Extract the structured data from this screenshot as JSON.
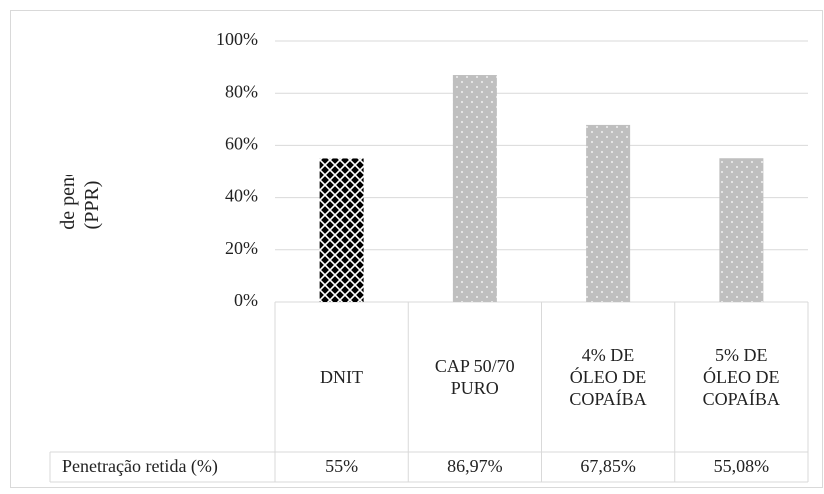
{
  "chart_data": {
    "type": "bar",
    "y_label": "Percentagem de penetração retira (PPR)",
    "categories": [
      "DNIT",
      "CAP 50/70 PURO",
      "4% DE ÓLEO DE COPAÍBA",
      "5% DE ÓLEO DE COPAÍBA"
    ],
    "series": [
      {
        "name": "Penetração retida (%)",
        "colors": [
          "#000000",
          "#bfbfbf",
          "#bfbfbf",
          "#bfbfbf"
        ],
        "values": [
          55,
          86.97,
          67.85,
          55.08
        ],
        "value_labels": [
          "55%",
          "86,97%",
          "67,85%",
          "55,08%"
        ]
      }
    ],
    "ylim": [
      0,
      100
    ],
    "yticks": [
      {
        "value": 0,
        "label": "0%"
      },
      {
        "value": 20,
        "label": "20%"
      },
      {
        "value": 40,
        "label": "40%"
      },
      {
        "value": 60,
        "label": "60%"
      },
      {
        "value": 80,
        "label": "80%"
      },
      {
        "value": 100,
        "label": "100%"
      }
    ],
    "grid": true
  }
}
